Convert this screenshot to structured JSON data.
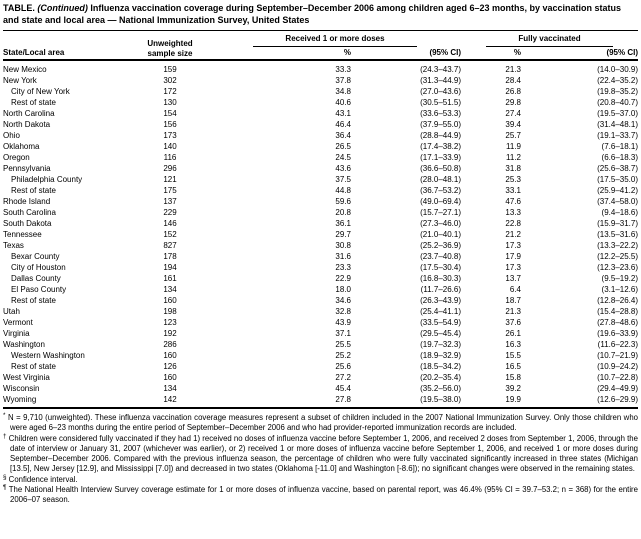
{
  "title": {
    "prefix": "TABLE.",
    "continued": "(Continued)",
    "text": "Influenza vaccination coverage during September–December 2006 among children aged 6–23 months, by vaccination status and state and local area — National Immunization Survey, United States"
  },
  "table": {
    "state_header": "State/Local area",
    "sample_header_line1": "Unweighted",
    "sample_header_line2": "sample size",
    "group1": "Received 1 or more doses",
    "group2": "Fully vaccinated",
    "pct_header": "%",
    "ci_header": "(95% CI)",
    "rows": [
      {
        "area": "New Mexico",
        "indent": false,
        "n": "159",
        "p1": "33.3",
        "ci1": "(24.3–43.7)",
        "p2": "21.3",
        "ci2": "(14.0–30.9)"
      },
      {
        "area": "New York",
        "indent": false,
        "n": "302",
        "p1": "37.8",
        "ci1": "(31.3–44.9)",
        "p2": "28.4",
        "ci2": "(22.4–35.2)"
      },
      {
        "area": "City of New York",
        "indent": true,
        "n": "172",
        "p1": "34.8",
        "ci1": "(27.0–43.6)",
        "p2": "26.8",
        "ci2": "(19.8–35.2)"
      },
      {
        "area": "Rest of state",
        "indent": true,
        "n": "130",
        "p1": "40.6",
        "ci1": "(30.5–51.5)",
        "p2": "29.8",
        "ci2": "(20.8–40.7)"
      },
      {
        "area": "North Carolina",
        "indent": false,
        "n": "154",
        "p1": "43.1",
        "ci1": "(33.6–53.3)",
        "p2": "27.4",
        "ci2": "(19.5–37.0)"
      },
      {
        "area": "North Dakota",
        "indent": false,
        "n": "156",
        "p1": "46.4",
        "ci1": "(37.9–55.0)",
        "p2": "39.4",
        "ci2": "(31.4–48.1)"
      },
      {
        "area": "Ohio",
        "indent": false,
        "n": "173",
        "p1": "36.4",
        "ci1": "(28.8–44.9)",
        "p2": "25.7",
        "ci2": "(19.1–33.7)"
      },
      {
        "area": "Oklahoma",
        "indent": false,
        "n": "140",
        "p1": "26.5",
        "ci1": "(17.4–38.2)",
        "p2": "11.9",
        "ci2": "(7.6–18.1)"
      },
      {
        "area": "Oregon",
        "indent": false,
        "n": "116",
        "p1": "24.5",
        "ci1": "(17.1–33.9)",
        "p2": "11.2",
        "ci2": "(6.6–18.3)"
      },
      {
        "area": "Pennsylvania",
        "indent": false,
        "n": "296",
        "p1": "43.6",
        "ci1": "(36.6–50.8)",
        "p2": "31.8",
        "ci2": "(25.6–38.7)"
      },
      {
        "area": "Philadelphia County",
        "indent": true,
        "n": "121",
        "p1": "37.5",
        "ci1": "(28.0–48.1)",
        "p2": "25.3",
        "ci2": "(17.5–35.0)"
      },
      {
        "area": "Rest of state",
        "indent": true,
        "n": "175",
        "p1": "44.8",
        "ci1": "(36.7–53.2)",
        "p2": "33.1",
        "ci2": "(25.9–41.2)"
      },
      {
        "area": "Rhode Island",
        "indent": false,
        "n": "137",
        "p1": "59.6",
        "ci1": "(49.0–69.4)",
        "p2": "47.6",
        "ci2": "(37.4–58.0)"
      },
      {
        "area": "South Carolina",
        "indent": false,
        "n": "229",
        "p1": "20.8",
        "ci1": "(15.7–27.1)",
        "p2": "13.3",
        "ci2": "(9.4–18.6)"
      },
      {
        "area": "South Dakota",
        "indent": false,
        "n": "146",
        "p1": "36.1",
        "ci1": "(27.3–46.0)",
        "p2": "22.8",
        "ci2": "(15.9–31.7)"
      },
      {
        "area": "Tennessee",
        "indent": false,
        "n": "152",
        "p1": "29.7",
        "ci1": "(21.0–40.1)",
        "p2": "21.2",
        "ci2": "(13.5–31.6)"
      },
      {
        "area": "Texas",
        "indent": false,
        "n": "827",
        "p1": "30.8",
        "ci1": "(25.2–36.9)",
        "p2": "17.3",
        "ci2": "(13.3–22.2)"
      },
      {
        "area": "Bexar County",
        "indent": true,
        "n": "178",
        "p1": "31.6",
        "ci1": "(23.7–40.8)",
        "p2": "17.9",
        "ci2": "(12.2–25.5)"
      },
      {
        "area": "City of Houston",
        "indent": true,
        "n": "194",
        "p1": "23.3",
        "ci1": "(17.5–30.4)",
        "p2": "17.3",
        "ci2": "(12.3–23.6)"
      },
      {
        "area": "Dallas County",
        "indent": true,
        "n": "161",
        "p1": "22.9",
        "ci1": "(16.8–30.3)",
        "p2": "13.7",
        "ci2": "(9.5–19.2)"
      },
      {
        "area": "El Paso County",
        "indent": true,
        "n": "134",
        "p1": "18.0",
        "ci1": "(11.7–26.6)",
        "p2": "6.4",
        "ci2": "(3.1–12.6)"
      },
      {
        "area": "Rest of state",
        "indent": true,
        "n": "160",
        "p1": "34.6",
        "ci1": "(26.3–43.9)",
        "p2": "18.7",
        "ci2": "(12.8–26.4)"
      },
      {
        "area": "Utah",
        "indent": false,
        "n": "198",
        "p1": "32.8",
        "ci1": "(25.4–41.1)",
        "p2": "21.3",
        "ci2": "(15.4–28.8)"
      },
      {
        "area": "Vermont",
        "indent": false,
        "n": "123",
        "p1": "43.9",
        "ci1": "(33.5–54.9)",
        "p2": "37.6",
        "ci2": "(27.8–48.6)"
      },
      {
        "area": "Virginia",
        "indent": false,
        "n": "192",
        "p1": "37.1",
        "ci1": "(29.5–45.4)",
        "p2": "26.1",
        "ci2": "(19.6–33.9)"
      },
      {
        "area": "Washington",
        "indent": false,
        "n": "286",
        "p1": "25.5",
        "ci1": "(19.7–32.3)",
        "p2": "16.3",
        "ci2": "(11.6–22.3)"
      },
      {
        "area": "Western Washington",
        "indent": true,
        "n": "160",
        "p1": "25.2",
        "ci1": "(18.9–32.9)",
        "p2": "15.5",
        "ci2": "(10.7–21.9)"
      },
      {
        "area": "Rest of state",
        "indent": true,
        "n": "126",
        "p1": "25.6",
        "ci1": "(18.5–34.2)",
        "p2": "16.5",
        "ci2": "(10.9–24.2)"
      },
      {
        "area": "West Virginia",
        "indent": false,
        "n": "160",
        "p1": "27.2",
        "ci1": "(20.2–35.4)",
        "p2": "15.8",
        "ci2": "(10.7–22.8)"
      },
      {
        "area": "Wisconsin",
        "indent": false,
        "n": "134",
        "p1": "45.4",
        "ci1": "(35.2–56.0)",
        "p2": "39.2",
        "ci2": "(29.4–49.9)"
      },
      {
        "area": "Wyoming",
        "indent": false,
        "n": "142",
        "p1": "27.8",
        "ci1": "(19.5–38.0)",
        "p2": "19.9",
        "ci2": "(12.6–29.9)"
      }
    ]
  },
  "footnotes": [
    {
      "marker": "*",
      "text": "N = 9,710 (unweighted). These influenza vaccination coverage measures represent a subset of children included in the 2007 National Immunization Survey. Only those children who were aged 6–23 months during the entire period of September–December 2006 and who had provider-reported immunization records are included."
    },
    {
      "marker": "†",
      "text": "Children were considered fully vaccinated if they had 1) received no doses of influenza vaccine before September 1, 2006, and received 2 doses from September 1, 2006, through the date of interview or January 31, 2007 (whichever was earlier), or 2) received 1 or more doses of influenza vaccine before September 1, 2006, and received 1 or more doses during September–December 2006. Compared with the previous influenza season, the percentage of children who were fully vaccinated significantly increased in three states (Michigan [13.5], New Jersey [12.9], and Mississippi [7.0]) and decreased in two states (Oklahoma [-11.0] and Washington [-8.6]); no significant changes were observed in the remaining states."
    },
    {
      "marker": "§",
      "text": "Confidence interval."
    },
    {
      "marker": "¶",
      "text": "The National Health Interview Survey coverage estimate for 1 or more doses of influenza vaccine, based on parental report, was 46.4% (95% CI = 39.7–53.2; n = 368) for the entire 2006–07 season."
    }
  ]
}
